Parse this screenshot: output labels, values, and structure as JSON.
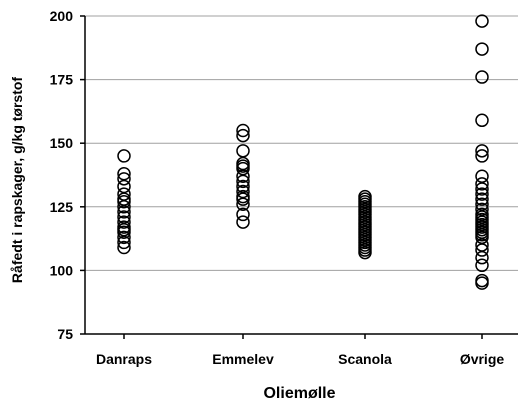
{
  "chart_data": {
    "type": "scatter",
    "title": "",
    "xlabel": "Oliemølle",
    "ylabel": "Råfedt i rapskager, g/kg tørstof",
    "categories": [
      "Danraps",
      "Emmelev",
      "Scanola",
      "Øvrige"
    ],
    "ylim": [
      75,
      200
    ],
    "yticks": [
      75,
      100,
      125,
      150,
      175,
      200
    ],
    "grid": true,
    "legend": "none",
    "marker": "open-circle",
    "colors": {
      "marker": "#000000",
      "grid": "#a0a0a0",
      "axis": "#000000"
    },
    "series": [
      {
        "category": "Danraps",
        "values": [
          145,
          138,
          136,
          133,
          130,
          128,
          127,
          125,
          123,
          121,
          119,
          117,
          116,
          115,
          113,
          111,
          109
        ]
      },
      {
        "category": "Emmelev",
        "values": [
          155,
          153,
          147,
          142,
          141,
          140,
          137,
          135,
          133,
          131,
          129,
          128,
          126,
          122,
          119
        ]
      },
      {
        "category": "Scanola",
        "values": [
          129,
          128,
          127,
          126,
          125,
          124,
          123,
          122,
          121,
          120,
          119,
          118,
          117,
          116,
          115,
          114,
          113,
          112,
          111,
          110,
          109,
          108,
          107
        ]
      },
      {
        "category": "Øvrige",
        "values": [
          198,
          187,
          176,
          159,
          147,
          145,
          137,
          134,
          132,
          130,
          128,
          126,
          124,
          122,
          121,
          120,
          119,
          118,
          117,
          116,
          115,
          114,
          113,
          110,
          108,
          105,
          102,
          96,
          95
        ]
      }
    ]
  }
}
